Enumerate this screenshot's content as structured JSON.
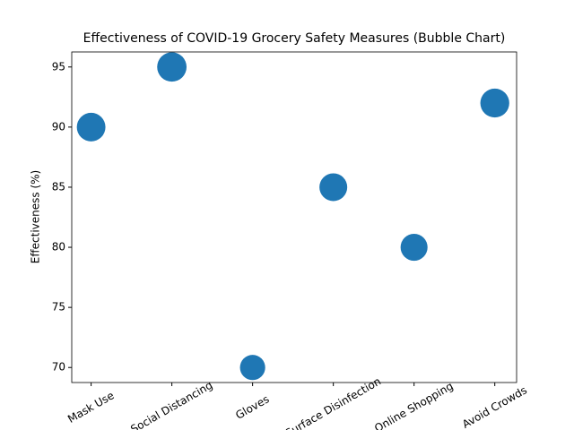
{
  "chart_data": {
    "type": "bubble",
    "title": "Effectiveness of COVID-19 Grocery Safety Measures (Bubble Chart)",
    "y_label": "Effectiveness (%)",
    "categories": [
      "Mask Use",
      "Social Distancing",
      "Gloves",
      "Surface Disinfection",
      "Online Shopping",
      "Avoid Crowds"
    ],
    "values": [
      90,
      95,
      70,
      85,
      80,
      92
    ],
    "color": "#1f77b4",
    "ylim": [
      68.75,
      96.25
    ],
    "yticks": [
      70,
      75,
      80,
      85,
      90,
      95
    ],
    "grid": false
  }
}
